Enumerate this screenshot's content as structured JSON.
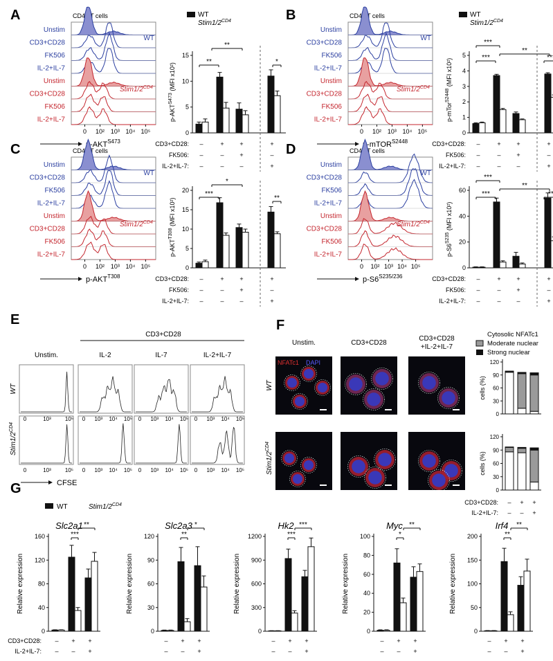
{
  "figure": {
    "panel_letters": [
      "A",
      "B",
      "C",
      "D",
      "E",
      "F",
      "G"
    ],
    "legend": {
      "wt": "WT",
      "ko": "Stim1/2",
      "ko_sup": "CD4"
    },
    "flow": {
      "title": "CD4⁺ T cells",
      "conditions": [
        "Unstim",
        "CD3+CD28",
        "FK506",
        "IL-2+IL-7"
      ],
      "group_wt": "WT",
      "ticks": [
        "0",
        "10²",
        "10³",
        "10⁴",
        "10⁵"
      ],
      "ticks_d": [
        "0",
        "10²",
        "10³",
        "10⁴",
        "10⁵"
      ],
      "colors": {
        "wt": "#2b3fa0",
        "ko": "#c4262e",
        "wt_fill": "#8a8fd0",
        "ko_fill": "#e8a0a0"
      }
    },
    "treatments": {
      "row1": "CD3+CD28:",
      "row2": "FK506:",
      "row3": "IL-2+IL-7:",
      "row1_vals": [
        "–",
        "+",
        "+",
        "+"
      ],
      "row2_vals": [
        "–",
        "–",
        "+",
        "–"
      ],
      "row3_vals": [
        "–",
        "–",
        "–",
        "+"
      ]
    },
    "panel_A": {
      "xlabel": "p-AKT",
      "xlabel_sup": "S473",
      "ylabel": "p-AKT",
      "ylabel_sup": "S473",
      "ylabel_unit": "(MFI x10²)",
      "yticks": [
        "0",
        "5",
        "10",
        "15"
      ],
      "sig": [
        "**",
        "**",
        "*"
      ]
    },
    "panel_B": {
      "xlabel": "p-AKT",
      "xlabel_sup": "T308",
      "ylabel": "p-AKT",
      "ylabel_sup": "T308",
      "ylabel_unit": "(MFI x10²)",
      "yticks": [
        "0",
        "5",
        "10",
        "15",
        "20"
      ],
      "sig": [
        "*",
        "***",
        "**"
      ]
    },
    "panel_C": {
      "xlabel": "p-mTOR",
      "xlabel_sup": "S2448",
      "ylabel": "p-mTor",
      "ylabel_sup": "S2448",
      "ylabel_unit": "(MFI x10²)",
      "yticks": [
        "0",
        "1",
        "2",
        "3",
        "4",
        "5"
      ],
      "sig": [
        "***",
        "**",
        "***",
        "***"
      ]
    },
    "panel_D": {
      "xlabel": "p-S6",
      "xlabel_sup": "S235/236",
      "ylabel": "p-S6",
      "ylabel_sup": "S235",
      "ylabel_unit": "(MFI x10²)",
      "yticks": [
        "0",
        "20",
        "40",
        "60"
      ],
      "sig": [
        "***",
        "**",
        "***",
        "**"
      ]
    },
    "panel_E": {
      "header": "CD3+CD28",
      "columns": [
        "Unstim.",
        "IL-2",
        "IL-7",
        "IL-2+IL-7"
      ],
      "rows": [
        "WT",
        "Stim1/2"
      ],
      "ticks_first": [
        "0",
        "10³",
        "10⁵"
      ],
      "ticks": [
        "0",
        "10³",
        "10⁴",
        "10⁵"
      ],
      "xlabel": "CFSE"
    },
    "panel_F": {
      "columns": [
        "Unstim.",
        "CD3+CD28",
        "CD3+CD28",
        "+IL-2+IL-7"
      ],
      "rows": [
        "WT",
        "Stim1/2"
      ],
      "stain_red": "NFATc1",
      "stain_blue": "DAPI",
      "legend": [
        "Cytosolic NFATc1",
        "Moderate nuclear",
        "Strong nuclear"
      ],
      "ylabel": "cells (%)",
      "yticks": [
        "0",
        "30",
        "60",
        "90",
        "120"
      ],
      "treat1": "CD3+CD28:",
      "treat1_vals": [
        "–",
        "+",
        "+"
      ],
      "treat2": "IL-2+IL-7:",
      "treat2_vals": [
        "–",
        "–",
        "+"
      ]
    },
    "panel_G": {
      "genes": [
        "Slc2a1",
        "Slc2a3",
        "Hk2",
        "Myc",
        "Irf4"
      ],
      "ylabel": "Relative expression",
      "treat1": "CD3+CD28:",
      "treat1_vals": [
        "–",
        "+",
        "+"
      ],
      "treat2": "IL-2+IL-7:",
      "treat2_vals": [
        "–",
        "–",
        "+"
      ],
      "yticks": [
        [
          "0",
          "40",
          "80",
          "120",
          "160"
        ],
        [
          "0",
          "30",
          "60",
          "90",
          "120"
        ],
        [
          "0",
          "300",
          "600",
          "900",
          "1200"
        ],
        [
          "0",
          "20",
          "40",
          "60",
          "80",
          "100"
        ],
        [
          "0",
          "50",
          "100",
          "150",
          "200"
        ]
      ],
      "sig": [
        [
          "***",
          "**"
        ],
        [
          "**",
          "*"
        ],
        [
          "***",
          "***"
        ],
        [
          "*",
          "**"
        ],
        [
          "**",
          "**"
        ]
      ]
    }
  },
  "chart_data": [
    {
      "type": "bar",
      "title": "A",
      "ylabel": "p-AKT S473 (MFI x10²)",
      "ylim": [
        0,
        15
      ],
      "categories": [
        "Unstim",
        "CD3+CD28",
        "CD3+CD28+FK506",
        "CD3+CD28+IL-2+IL-7"
      ],
      "series": [
        {
          "name": "WT",
          "values": [
            1.7,
            10.8,
            4.6,
            11.0
          ],
          "errors": [
            0.4,
            0.9,
            1.2,
            1.2
          ]
        },
        {
          "name": "Stim1/2CD4",
          "values": [
            2.1,
            4.8,
            3.5,
            7.2
          ],
          "errors": [
            0.6,
            1.1,
            0.8,
            0.9
          ]
        }
      ]
    },
    {
      "type": "bar",
      "title": "B",
      "ylabel": "p-AKT T308 (MFI x10²)",
      "ylim": [
        0,
        20
      ],
      "categories": [
        "Unstim",
        "CD3+CD28",
        "CD3+CD28+FK506",
        "CD3+CD28+IL-2+IL-7"
      ],
      "series": [
        {
          "name": "WT",
          "values": [
            1.2,
            16.8,
            10.4,
            14.4
          ],
          "errors": [
            0.3,
            1.3,
            0.9,
            1.4
          ]
        },
        {
          "name": "Stim1/2CD4",
          "values": [
            1.6,
            8.4,
            9.2,
            8.8
          ],
          "errors": [
            0.4,
            0.6,
            0.8,
            0.5
          ]
        }
      ]
    },
    {
      "type": "bar",
      "title": "C",
      "ylabel": "p-mTor S2448 (MFI x10²)",
      "ylim": [
        0,
        5
      ],
      "categories": [
        "Unstim",
        "CD3+CD28",
        "CD3+CD28+FK506",
        "CD3+CD28+IL-2+IL-7"
      ],
      "series": [
        {
          "name": "WT",
          "values": [
            0.6,
            3.7,
            1.25,
            3.8
          ],
          "errors": [
            0.05,
            0.08,
            0.1,
            0.08
          ]
        },
        {
          "name": "Stim1/2CD4",
          "values": [
            0.65,
            1.5,
            0.85,
            2.3
          ],
          "errors": [
            0.05,
            0.08,
            0.05,
            0.15
          ]
        }
      ]
    },
    {
      "type": "bar",
      "title": "D",
      "ylabel": "p-S6 S235 (MFI x10²)",
      "ylim": [
        0,
        60
      ],
      "categories": [
        "Unstim",
        "CD3+CD28",
        "CD3+CD28+FK506",
        "CD3+CD28+IL-2+IL-7"
      ],
      "series": [
        {
          "name": "WT",
          "values": [
            0.5,
            51,
            9,
            54
          ],
          "errors": [
            0.3,
            3,
            3,
            4
          ]
        },
        {
          "name": "Stim1/2CD4",
          "values": [
            0.5,
            4.5,
            3,
            21
          ],
          "errors": [
            0.3,
            1,
            0.8,
            3
          ]
        }
      ]
    },
    {
      "type": "bar",
      "title": "F (WT)",
      "ylabel": "cells (%)",
      "ylim": [
        0,
        120
      ],
      "categories": [
        "Unstim",
        "CD3+CD28",
        "CD3+CD28+IL-2+IL-7"
      ],
      "series": [
        {
          "name": "Cytosolic NFATc1",
          "values": [
            96,
            13,
            6
          ]
        },
        {
          "name": "Moderate nuclear",
          "values": [
            2,
            80,
            84
          ]
        },
        {
          "name": "Strong nuclear",
          "values": [
            1,
            3,
            5
          ]
        }
      ]
    },
    {
      "type": "bar",
      "title": "F (Stim1/2CD4)",
      "ylabel": "cells (%)",
      "ylim": [
        0,
        120
      ],
      "categories": [
        "Unstim",
        "CD3+CD28",
        "CD3+CD28+IL-2+IL-7"
      ],
      "series": [
        {
          "name": "Cytosolic NFATc1",
          "values": [
            86,
            84,
            18
          ]
        },
        {
          "name": "Moderate nuclear",
          "values": [
            10,
            10,
            72
          ]
        },
        {
          "name": "Strong nuclear",
          "values": [
            1,
            2,
            5
          ]
        }
      ]
    },
    {
      "type": "bar",
      "title": "Slc2a1",
      "ylabel": "Relative expression",
      "ylim": [
        0,
        160
      ],
      "categories": [
        "Unstim",
        "CD3+CD28",
        "CD3+CD28+IL-2+IL-7"
      ],
      "series": [
        {
          "name": "WT",
          "values": [
            2,
            125,
            90
          ],
          "errors": [
            0.5,
            20,
            15
          ]
        },
        {
          "name": "Stim1/2CD4",
          "values": [
            2,
            35,
            118
          ],
          "errors": [
            0.5,
            5,
            15
          ]
        }
      ]
    },
    {
      "type": "bar",
      "title": "Slc2a3",
      "ylabel": "Relative expression",
      "ylim": [
        0,
        120
      ],
      "categories": [
        "Unstim",
        "CD3+CD28",
        "CD3+CD28+IL-2+IL-7"
      ],
      "series": [
        {
          "name": "WT",
          "values": [
            1,
            88,
            83
          ],
          "errors": [
            0.5,
            18,
            24
          ]
        },
        {
          "name": "Stim1/2CD4",
          "values": [
            1,
            12,
            56
          ],
          "errors": [
            0.5,
            4,
            14
          ]
        }
      ]
    },
    {
      "type": "bar",
      "title": "Hk2",
      "ylabel": "Relative expression",
      "ylim": [
        0,
        1200
      ],
      "categories": [
        "Unstim",
        "CD3+CD28",
        "CD3+CD28+IL-2+IL-7"
      ],
      "series": [
        {
          "name": "WT",
          "values": [
            5,
            920,
            690
          ],
          "errors": [
            2,
            120,
            80
          ]
        },
        {
          "name": "Stim1/2CD4",
          "values": [
            5,
            230,
            1070
          ],
          "errors": [
            2,
            30,
            110
          ]
        }
      ]
    },
    {
      "type": "bar",
      "title": "Myc",
      "ylabel": "Relative expression",
      "ylim": [
        0,
        100
      ],
      "categories": [
        "Unstim",
        "CD3+CD28",
        "CD3+CD28+IL-2+IL-7"
      ],
      "series": [
        {
          "name": "WT",
          "values": [
            1,
            72,
            57
          ],
          "errors": [
            0.5,
            15,
            11
          ]
        },
        {
          "name": "Stim1/2CD4",
          "values": [
            1,
            30,
            63
          ],
          "errors": [
            0.5,
            5,
            8
          ]
        }
      ]
    },
    {
      "type": "bar",
      "title": "Irf4",
      "ylabel": "Relative expression",
      "ylim": [
        0,
        200
      ],
      "categories": [
        "Unstim",
        "CD3+CD28",
        "CD3+CD28+IL-2+IL-7"
      ],
      "series": [
        {
          "name": "WT",
          "values": [
            1,
            147,
            97
          ],
          "errors": [
            0.5,
            28,
            18
          ]
        },
        {
          "name": "Stim1/2CD4",
          "values": [
            1,
            35,
            127
          ],
          "errors": [
            0.5,
            6,
            25
          ]
        }
      ]
    }
  ]
}
